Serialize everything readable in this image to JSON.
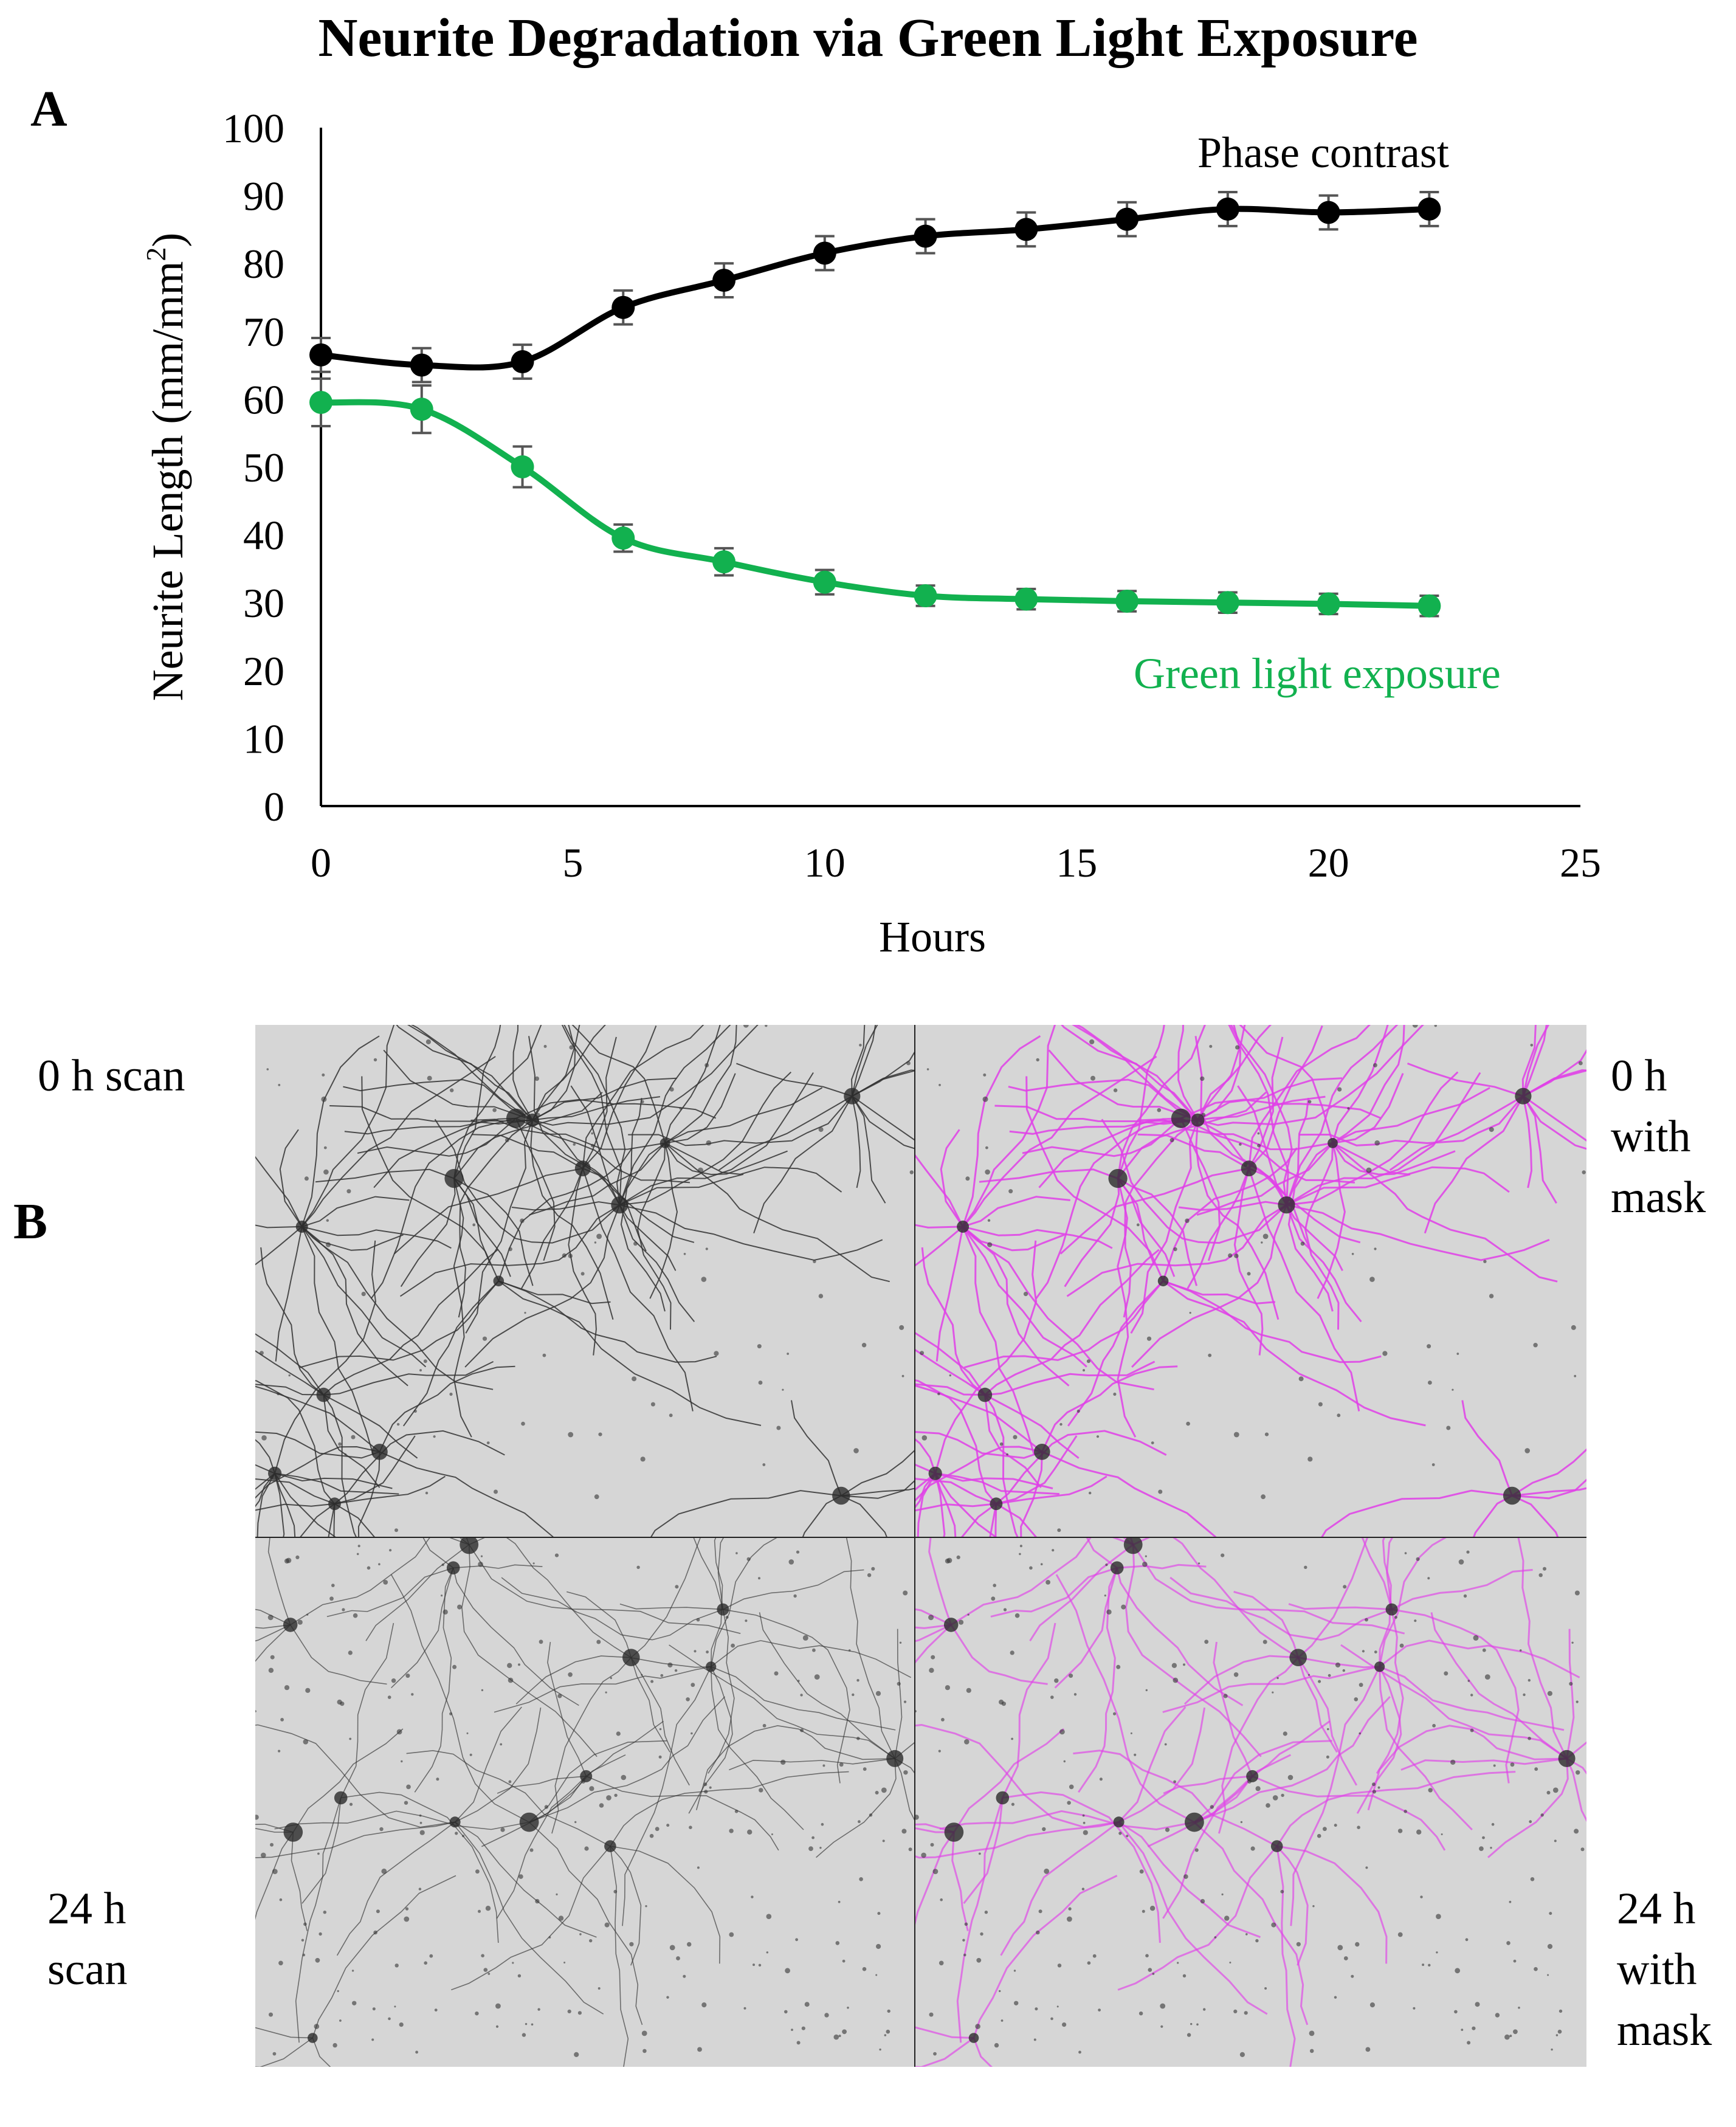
{
  "figure": {
    "title": "Neurite Degradation via Green Light Exposure",
    "panel_a_label": "A",
    "panel_b_label": "B"
  },
  "chart_data": {
    "type": "line",
    "title": "Neurite Degradation via Green Light Exposure",
    "xlabel": "Hours",
    "ylabel_text": "Neurite Length (mm/mm",
    "ylabel_sup": "2",
    "ylabel_close": ")",
    "xlim": [
      0,
      25
    ],
    "ylim": [
      0,
      100
    ],
    "xticks": [
      0,
      5,
      10,
      15,
      20,
      25
    ],
    "yticks": [
      0,
      10,
      20,
      30,
      40,
      50,
      60,
      70,
      80,
      90,
      100
    ],
    "grid": false,
    "x": [
      0,
      2,
      4,
      6,
      8,
      10,
      12,
      14,
      16,
      18,
      20,
      22
    ],
    "series": [
      {
        "name": "Phase contrast",
        "color": "#000000",
        "values": [
          66.5,
          65,
          65.5,
          73.5,
          77.5,
          81.5,
          84,
          85,
          86.5,
          88,
          87.5,
          88
        ],
        "errors": [
          2.5,
          2.5,
          2.5,
          2.5,
          2.5,
          2.5,
          2.5,
          2.5,
          2.5,
          2.5,
          2.5,
          2.5
        ]
      },
      {
        "name": "Green light exposure",
        "color": "#12b14f",
        "values": [
          59.5,
          58.5,
          50,
          39.5,
          36,
          33,
          31,
          30.5,
          30.2,
          30,
          29.8,
          29.5
        ],
        "errors": [
          3.5,
          3.5,
          3,
          2,
          2,
          1.8,
          1.5,
          1.5,
          1.5,
          1.5,
          1.5,
          1.5
        ]
      }
    ]
  },
  "micrographs": {
    "labels": {
      "top_left": [
        "0 h scan"
      ],
      "top_right": [
        "0 h",
        "with",
        "mask"
      ],
      "bottom_left": [
        "24 h",
        "scan"
      ],
      "bottom_right": [
        "24 h",
        "with",
        "mask"
      ]
    },
    "mask_color": "#e040e8",
    "neurite_color": "#333333"
  }
}
